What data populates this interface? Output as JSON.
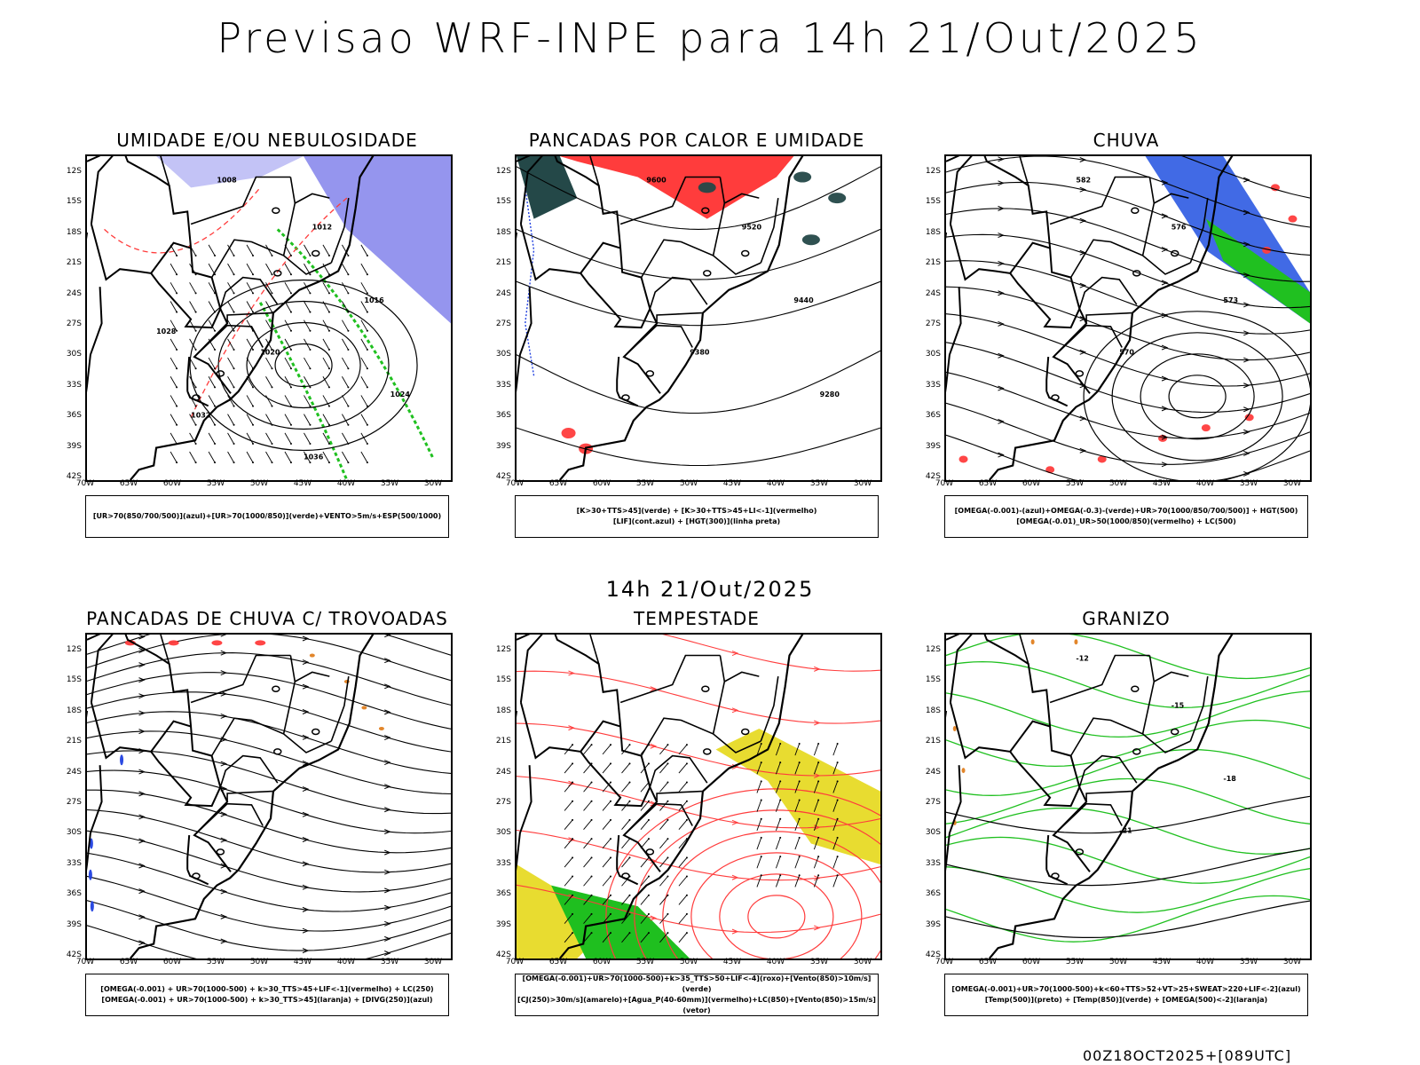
{
  "title": "Previsao WRF-INPE  para 14h 21/Out/2025",
  "mid_date": "14h 21/Out/2025",
  "footer": "00Z18OCT2025+[089UTC]",
  "lat_labels": [
    "12S",
    "15S",
    "18S",
    "21S",
    "24S",
    "27S",
    "30S",
    "33S",
    "36S",
    "39S",
    "42S"
  ],
  "lon_labels": [
    "70W",
    "65W",
    "60W",
    "55W",
    "50W",
    "45W",
    "40W",
    "35W",
    "30W"
  ],
  "panels": [
    {
      "title": "UMIDADE E/OU NEBULOSIDADE",
      "legend": [
        "[UR>70(850/700/500)](azul)+[UR>70(1000/850)](verde)+VENTO>5m/s+ESP(500/1000)"
      ],
      "contour_labels": [
        "1008",
        "1012",
        "1016",
        "1020",
        "1024",
        "1028",
        "1032",
        "1036"
      ]
    },
    {
      "title": "PANCADAS POR CALOR E UMIDADE",
      "legend": [
        "[K>30+TTS>45](verde) + [K>30+TTS>45+LI<-1](vermelho)",
        "[LIF](cont.azul) + [HGT(300)](linha preta)"
      ],
      "contour_labels": [
        "9600",
        "9520",
        "9440",
        "9380",
        "9280"
      ]
    },
    {
      "title": "CHUVA",
      "legend": [
        "[OMEGA(-0.001)-(azul)+OMEGA(-0.3)-(verde)+UR>70(1000/850/700/500)] + HGT(500)",
        "[OMEGA(-0.01)_UR>50(1000/850)(vermelho) + LC(500)"
      ],
      "contour_labels": [
        "582",
        "576",
        "573",
        "570"
      ]
    },
    {
      "title": "PANCADAS DE CHUVA C/ TROVOADAS",
      "legend": [
        "[OMEGA(-0.001) + UR>70(1000-500) + k>30_TTS>45+LIF<-1](vermelho) + LC(250)",
        "[OMEGA(-0.001) + UR>70(1000-500) + k>30_TTS>45](laranja) + [DIVG(250)](azul)"
      ],
      "contour_labels": []
    },
    {
      "title": "TEMPESTADE",
      "legend": [
        "[OMEGA(-0.001)+UR>70(1000-500)+k>35_TTS>50+LIF<-4](roxo)+[Vento(850)>10m/s](verde)",
        "[CJ(250)>30m/s](amarelo)+[Agua_P(40-60mm)](vermelho)+LC(850)+[Vento(850)>15m/s](vetor)"
      ],
      "contour_labels": []
    },
    {
      "title": "GRANIZO",
      "legend": [
        "[OMEGA(-0.001)+UR>70(1000-500)+k<60+TTS>52+VT>25+SWEAT>220+LIF<-2](azul)",
        "[Temp(500)](preto) + [Temp(850)](verde) + [OMEGA(500)<-2](laranja)"
      ],
      "contour_labels": [
        "-12",
        "-15",
        "-18",
        "-21"
      ]
    }
  ],
  "colors": {
    "humid_blue": "#7b7bea",
    "humid_green": "#20c020",
    "rain_red": "#ff3c3c",
    "jet_yellow": "#e8dc30",
    "wind_green": "#1fbf1f",
    "dark_teal": "#244848",
    "orange": "#e08020"
  }
}
